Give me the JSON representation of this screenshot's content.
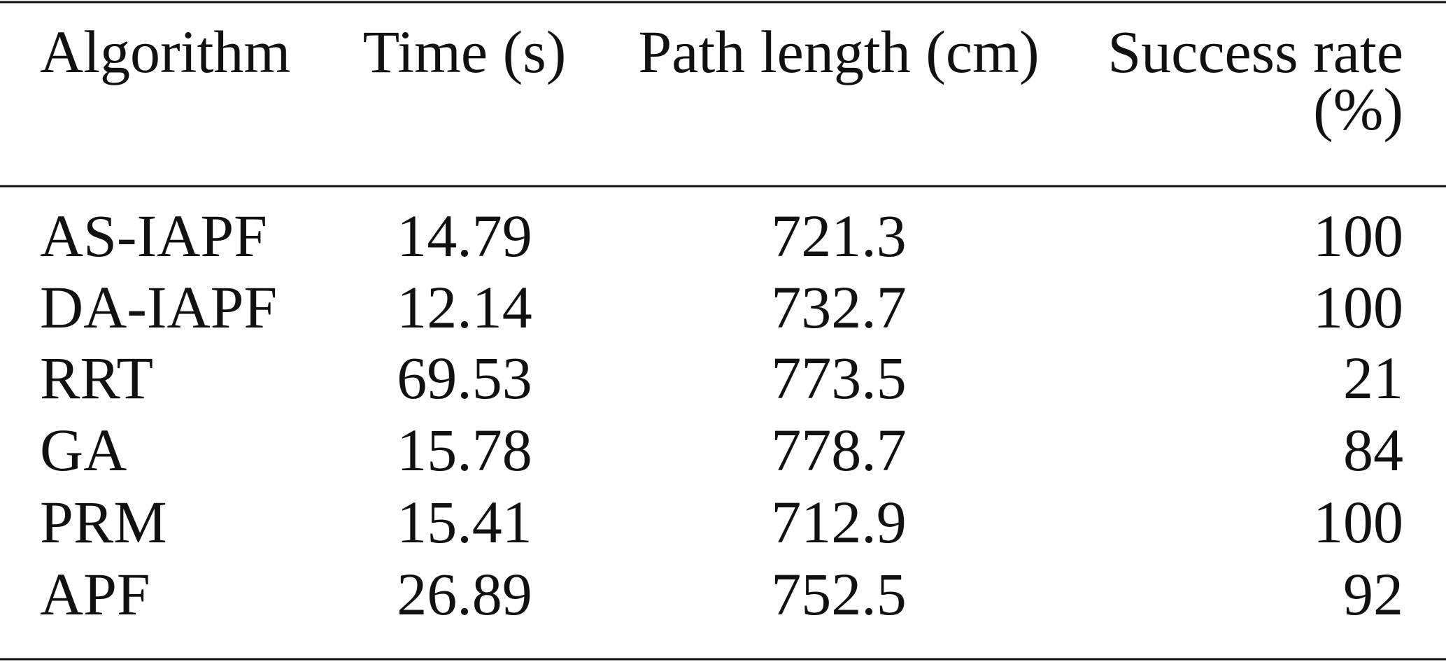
{
  "table": {
    "header": [
      "Algorithm",
      "Time (s)",
      "Path length (cm)",
      [
        "Success rate",
        "(%)"
      ]
    ],
    "rows": [
      [
        "AS-IAPF",
        14.79,
        721.3,
        100
      ],
      [
        "DA-IAPF",
        12.14,
        732.7,
        100
      ],
      [
        "RRT",
        69.53,
        773.5,
        21
      ],
      [
        "GA",
        15.78,
        778.7,
        84
      ],
      [
        "PRM",
        15.41,
        712.9,
        100
      ],
      [
        "APF",
        26.89,
        752.5,
        92
      ]
    ]
  }
}
